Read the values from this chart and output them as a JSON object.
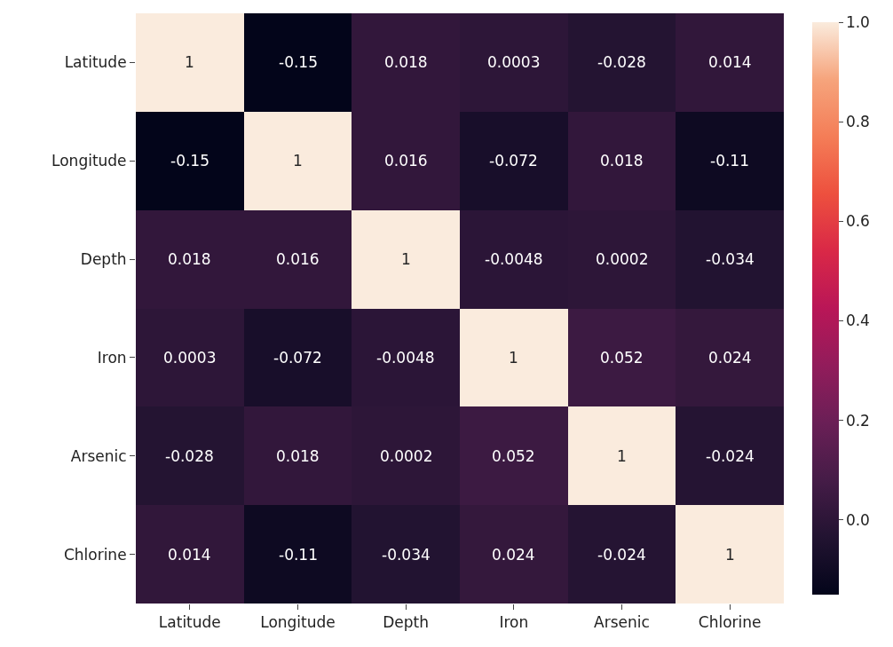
{
  "chart_data": {
    "type": "heatmap",
    "categories": [
      "Latitude",
      "Longitude",
      "Depth",
      "Iron",
      "Arsenic",
      "Chlorine"
    ],
    "y_categories": [
      "Latitude",
      "Longitude",
      "Depth",
      "Iron",
      "Arsenic",
      "Chlorine"
    ],
    "cells": [
      [
        1,
        -0.15,
        0.018,
        0.0003,
        -0.028,
        0.014
      ],
      [
        -0.15,
        1,
        0.016,
        -0.072,
        0.018,
        -0.11
      ],
      [
        0.018,
        0.016,
        1,
        -0.0048,
        0.0002,
        -0.034
      ],
      [
        0.0003,
        -0.072,
        -0.0048,
        1,
        0.052,
        0.024
      ],
      [
        -0.028,
        0.018,
        0.0002,
        0.052,
        1,
        -0.024
      ],
      [
        0.014,
        -0.11,
        -0.034,
        0.024,
        -0.024,
        1
      ]
    ],
    "data_labels": true,
    "clim": [
      -0.15,
      1.0
    ],
    "cticks": [
      {
        "value": 0.0,
        "label": "0.0"
      },
      {
        "value": 0.2,
        "label": "0.2"
      },
      {
        "value": 0.4,
        "label": "0.4"
      },
      {
        "value": 0.6,
        "label": "0.6"
      },
      {
        "value": 0.8,
        "label": "0.8"
      },
      {
        "value": 1.0,
        "label": "1.0"
      }
    ]
  }
}
